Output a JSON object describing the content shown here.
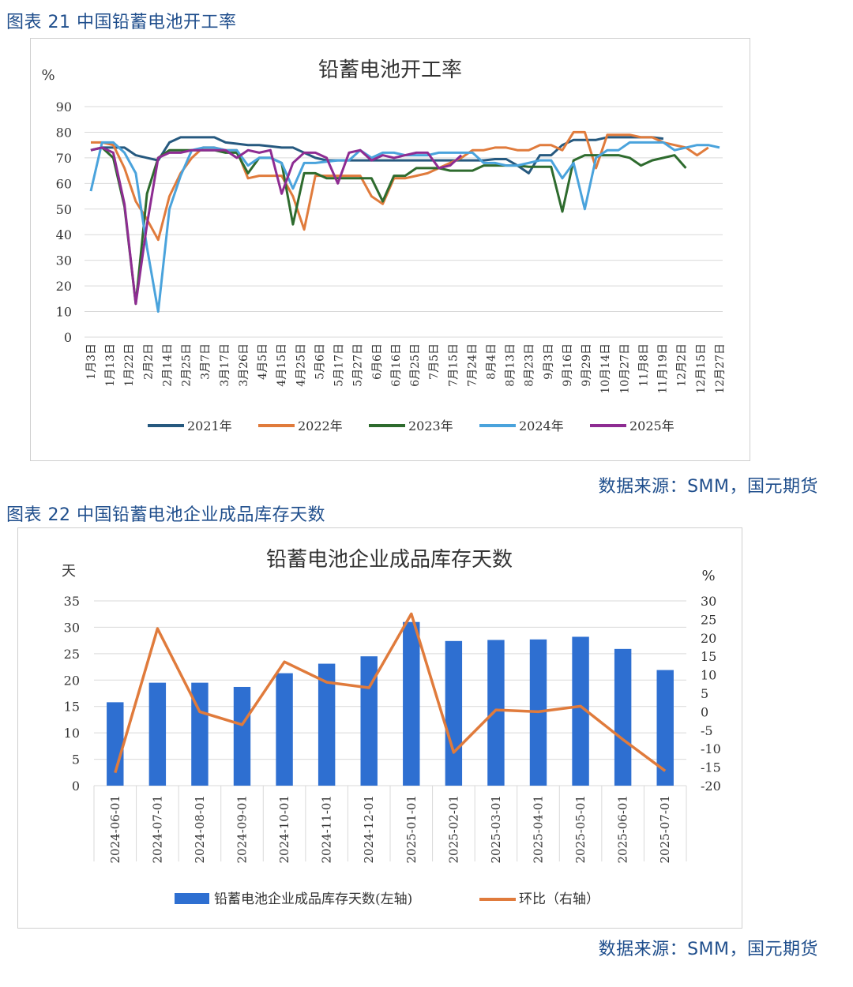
{
  "figure21": {
    "caption": "图表 21 中国铅蓄电池开工率",
    "source": "数据来源：SMM，国元期货",
    "colors": {
      "2021": "#26597f",
      "2022": "#e07b3c",
      "2023": "#2e6b2e",
      "2024": "#4aa3dc",
      "2025": "#8e2c92"
    }
  },
  "figure22": {
    "caption": "图表 22 中国铅蓄电池企业成品库存天数",
    "source": "数据来源：SMM，国元期货",
    "colors": {
      "bar": "#2e6fd1",
      "line": "#e07b3c"
    }
  },
  "chart_data": [
    {
      "type": "line",
      "title": "铅蓄电池开工率",
      "ylabel": "%",
      "ylim": [
        0,
        90
      ],
      "yticks": [
        0,
        10,
        20,
        30,
        40,
        50,
        60,
        70,
        80,
        90
      ],
      "grid": true,
      "legend": "bottom",
      "xtick_labels": [
        "1月3日",
        "1月13日",
        "1月22日",
        "2月2日",
        "2月14日",
        "2月25日",
        "3月7日",
        "3月17日",
        "3月26日",
        "4月5日",
        "4月15日",
        "4月25日",
        "5月6日",
        "5月17日",
        "5月27日",
        "6月6日",
        "6月16日",
        "6月25日",
        "7月5日",
        "7月15日",
        "7月24日",
        "8月4日",
        "8月13日",
        "8月23日",
        "9月3日",
        "9月16日",
        "9月29日",
        "10月14日",
        "10月27日",
        "11月8日",
        "11月19日",
        "12月2日",
        "12月15日",
        "12月27日"
      ],
      "series": [
        {
          "name": "2021年",
          "values": [
            [
              0,
              73
            ],
            [
              1,
              74
            ],
            [
              2,
              74
            ],
            [
              3,
              74
            ],
            [
              4,
              71
            ],
            [
              5,
              70
            ],
            [
              6,
              69
            ],
            [
              7,
              76
            ],
            [
              8,
              78
            ],
            [
              9,
              78
            ],
            [
              10,
              78
            ],
            [
              11,
              78
            ],
            [
              12,
              76
            ],
            [
              13,
              75.5
            ],
            [
              14,
              75
            ],
            [
              15,
              75
            ],
            [
              16,
              74.5
            ],
            [
              17,
              74
            ],
            [
              18,
              74
            ],
            [
              19,
              72
            ],
            [
              20,
              70
            ],
            [
              21,
              69
            ],
            [
              22,
              69
            ],
            [
              23,
              69
            ],
            [
              24,
              69
            ],
            [
              25,
              69
            ],
            [
              26,
              69
            ],
            [
              27,
              69
            ],
            [
              28,
              69
            ],
            [
              29,
              69
            ],
            [
              30,
              69
            ],
            [
              31,
              69
            ],
            [
              32,
              69
            ],
            [
              33,
              69
            ],
            [
              34,
              69
            ],
            [
              35,
              69
            ],
            [
              36,
              69.5
            ],
            [
              37,
              69.5
            ],
            [
              38,
              67
            ],
            [
              39,
              64
            ],
            [
              40,
              71
            ],
            [
              41,
              71
            ],
            [
              42,
              75
            ],
            [
              43,
              77
            ],
            [
              44,
              77
            ],
            [
              45,
              77
            ],
            [
              46,
              78
            ],
            [
              47,
              78
            ],
            [
              48,
              78
            ],
            [
              49,
              78
            ],
            [
              50,
              78
            ],
            [
              51,
              77.5
            ]
          ]
        },
        {
          "name": "2022年",
          "values": [
            [
              0,
              76
            ],
            [
              1,
              76
            ],
            [
              2,
              75
            ],
            [
              3,
              66
            ],
            [
              4,
              53
            ],
            [
              5,
              46
            ],
            [
              6,
              38
            ],
            [
              7,
              55
            ],
            [
              8,
              64
            ],
            [
              9,
              70
            ],
            [
              10,
              74
            ],
            [
              11,
              74
            ],
            [
              12,
              73
            ],
            [
              13,
              73
            ],
            [
              14,
              62
            ],
            [
              15,
              63
            ],
            [
              16,
              63
            ],
            [
              17,
              63
            ],
            [
              18,
              55
            ],
            [
              19,
              42
            ],
            [
              20,
              63
            ],
            [
              21,
              63
            ],
            [
              22,
              63
            ],
            [
              23,
              63
            ],
            [
              24,
              63
            ],
            [
              25,
              55
            ],
            [
              26,
              52
            ],
            [
              27,
              62
            ],
            [
              28,
              62
            ],
            [
              29,
              63
            ],
            [
              30,
              64
            ],
            [
              31,
              66
            ],
            [
              32,
              68
            ],
            [
              33,
              70
            ],
            [
              34,
              73
            ],
            [
              35,
              73
            ],
            [
              36,
              74
            ],
            [
              37,
              74
            ],
            [
              38,
              73
            ],
            [
              39,
              73
            ],
            [
              40,
              75
            ],
            [
              41,
              75
            ],
            [
              42,
              73
            ],
            [
              43,
              80
            ],
            [
              44,
              80
            ],
            [
              45,
              66
            ],
            [
              46,
              79
            ],
            [
              47,
              79
            ],
            [
              48,
              79
            ],
            [
              49,
              78
            ],
            [
              50,
              78
            ],
            [
              51,
              76
            ],
            [
              52,
              75
            ],
            [
              53,
              74
            ],
            [
              54,
              71
            ],
            [
              55,
              74
            ]
          ]
        },
        {
          "name": "2023年",
          "values": [
            [
              0,
              73
            ],
            [
              1,
              74
            ],
            [
              2,
              70
            ],
            [
              3,
              51
            ],
            [
              4,
              13
            ],
            [
              5,
              56
            ],
            [
              6,
              70
            ],
            [
              7,
              73
            ],
            [
              8,
              73
            ],
            [
              9,
              73
            ],
            [
              10,
              73
            ],
            [
              11,
              73
            ],
            [
              12,
              72
            ],
            [
              13,
              72
            ],
            [
              14,
              64
            ],
            [
              15,
              70
            ],
            [
              16,
              70
            ],
            [
              17,
              68
            ],
            [
              18,
              44
            ],
            [
              19,
              64
            ],
            [
              20,
              64
            ],
            [
              21,
              62
            ],
            [
              22,
              62
            ],
            [
              23,
              62
            ],
            [
              24,
              62
            ],
            [
              25,
              62
            ],
            [
              26,
              53
            ],
            [
              27,
              63
            ],
            [
              28,
              63
            ],
            [
              29,
              66
            ],
            [
              30,
              66
            ],
            [
              31,
              66
            ],
            [
              32,
              65
            ],
            [
              33,
              65
            ],
            [
              34,
              65
            ],
            [
              35,
              67
            ],
            [
              36,
              67
            ],
            [
              37,
              67
            ],
            [
              38,
              67
            ],
            [
              39,
              66.5
            ],
            [
              40,
              66.5
            ],
            [
              41,
              66.5
            ],
            [
              42,
              49
            ],
            [
              43,
              69
            ],
            [
              44,
              71
            ],
            [
              45,
              71
            ],
            [
              46,
              71
            ],
            [
              47,
              71
            ],
            [
              48,
              70
            ],
            [
              49,
              67
            ],
            [
              50,
              69
            ],
            [
              51,
              70
            ],
            [
              52,
              71
            ],
            [
              53,
              66
            ]
          ]
        },
        {
          "name": "2024年",
          "values": [
            [
              0,
              57
            ],
            [
              1,
              76
            ],
            [
              2,
              76
            ],
            [
              3,
              72
            ],
            [
              4,
              64
            ],
            [
              5,
              35
            ],
            [
              6,
              10
            ],
            [
              7,
              50
            ],
            [
              8,
              63
            ],
            [
              9,
              73
            ],
            [
              10,
              74
            ],
            [
              11,
              74
            ],
            [
              12,
              73
            ],
            [
              13,
              73
            ],
            [
              14,
              67
            ],
            [
              15,
              70
            ],
            [
              16,
              70
            ],
            [
              17,
              68
            ],
            [
              18,
              58
            ],
            [
              19,
              68
            ],
            [
              20,
              68
            ],
            [
              21,
              68.5
            ],
            [
              22,
              69
            ],
            [
              23,
              69
            ],
            [
              24,
              73
            ],
            [
              25,
              70
            ],
            [
              26,
              72
            ],
            [
              27,
              72
            ],
            [
              28,
              71
            ],
            [
              29,
              71
            ],
            [
              30,
              71
            ],
            [
              31,
              72
            ],
            [
              32,
              72
            ],
            [
              33,
              72
            ],
            [
              34,
              72
            ],
            [
              35,
              68
            ],
            [
              36,
              68
            ],
            [
              37,
              67
            ],
            [
              38,
              67
            ],
            [
              39,
              68
            ],
            [
              40,
              69
            ],
            [
              41,
              69
            ],
            [
              42,
              62
            ],
            [
              43,
              68
            ],
            [
              44,
              50
            ],
            [
              45,
              70
            ],
            [
              46,
              73
            ],
            [
              47,
              73
            ],
            [
              48,
              76
            ],
            [
              49,
              76
            ],
            [
              50,
              76
            ],
            [
              51,
              76
            ],
            [
              52,
              73
            ],
            [
              53,
              74
            ],
            [
              54,
              75
            ],
            [
              55,
              75
            ],
            [
              56,
              74
            ]
          ]
        },
        {
          "name": "2025年",
          "values": [
            [
              0,
              73
            ],
            [
              1,
              74
            ],
            [
              2,
              72
            ],
            [
              3,
              52
            ],
            [
              4,
              13
            ],
            [
              5,
              44
            ],
            [
              6,
              70
            ],
            [
              7,
              72
            ],
            [
              8,
              72
            ],
            [
              9,
              73
            ],
            [
              10,
              73
            ],
            [
              11,
              73
            ],
            [
              12,
              73
            ],
            [
              13,
              70
            ],
            [
              14,
              73
            ],
            [
              15,
              72
            ],
            [
              16,
              73
            ],
            [
              17,
              56
            ],
            [
              18,
              68
            ],
            [
              19,
              72
            ],
            [
              20,
              72
            ],
            [
              21,
              70
            ],
            [
              22,
              60
            ],
            [
              23,
              72
            ],
            [
              24,
              73
            ],
            [
              25,
              69
            ],
            [
              26,
              71
            ],
            [
              27,
              70
            ],
            [
              28,
              71
            ],
            [
              29,
              72
            ],
            [
              30,
              72
            ],
            [
              31,
              66
            ],
            [
              32,
              67
            ],
            [
              33,
              71
            ]
          ]
        }
      ]
    },
    {
      "type": "bar",
      "title": "铅蓄电池企业成品库存天数",
      "categories": [
        "2024-06-01",
        "2024-07-01",
        "2024-08-01",
        "2024-09-01",
        "2024-10-01",
        "2024-11-01",
        "2024-12-01",
        "2025-01-01",
        "2025-02-01",
        "2025-03-01",
        "2025-04-01",
        "2025-05-01",
        "2025-06-01",
        "2025-07-01"
      ],
      "ylabel_left": "天",
      "ylabel_right": "%",
      "ylim_left": [
        0,
        35
      ],
      "yticks_left": [
        0,
        5,
        10,
        15,
        20,
        25,
        30,
        35
      ],
      "ylim_right": [
        -20,
        30
      ],
      "yticks_right": [
        -20,
        -15,
        -10,
        -5,
        0,
        5,
        10,
        15,
        20,
        25,
        30
      ],
      "legend": "bottom",
      "series": [
        {
          "name": "铅蓄电池企业成品库存天数(左轴)",
          "type": "bar",
          "axis": "left",
          "values": [
            15.8,
            19.5,
            19.5,
            18.7,
            21.3,
            23.1,
            24.5,
            31,
            27.4,
            27.6,
            27.7,
            28.2,
            25.9,
            21.9
          ]
        },
        {
          "name": "环比（右轴）",
          "type": "line",
          "axis": "right",
          "values": [
            -16.5,
            22.5,
            0,
            -3.5,
            13.5,
            8,
            6.5,
            26.5,
            -11,
            0.5,
            0,
            1.5,
            -7.5,
            -16
          ]
        }
      ]
    }
  ]
}
